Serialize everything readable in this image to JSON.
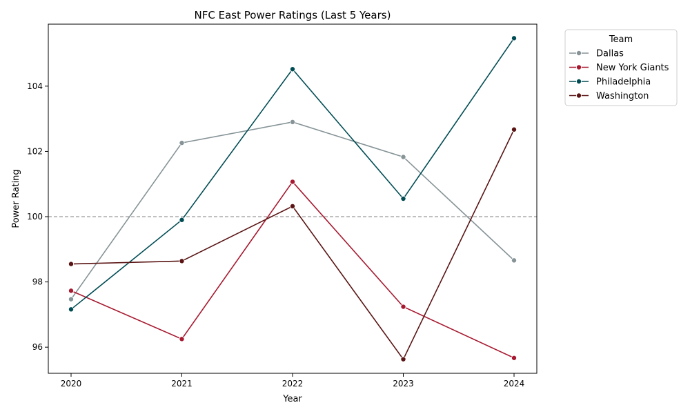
{
  "chart_data": {
    "type": "line",
    "title": "NFC East Power Ratings (Last 5 Years)",
    "xlabel": "Year",
    "ylabel": "Power Rating",
    "x": [
      "2020",
      "2021",
      "2022",
      "2023",
      "2024"
    ],
    "ylim": [
      95.2,
      105.9
    ],
    "yticks": [
      "96",
      "98",
      "100",
      "102",
      "104"
    ],
    "reference_line": {
      "value": 100,
      "style": "dashed",
      "color": "#808080"
    },
    "legend": {
      "title": "Team",
      "placement": "outside-upper-right"
    },
    "series": [
      {
        "name": "Dallas",
        "color": "#869397",
        "values": [
          97.47,
          102.26,
          102.9,
          101.83,
          98.66
        ]
      },
      {
        "name": "New York Giants",
        "color": "#a71930",
        "values": [
          97.73,
          96.25,
          101.07,
          97.24,
          95.67
        ]
      },
      {
        "name": "Philadelphia",
        "color": "#004c54",
        "values": [
          97.16,
          99.9,
          104.52,
          100.55,
          105.47
        ]
      },
      {
        "name": "Washington",
        "color": "#5a1414",
        "values": [
          98.55,
          98.64,
          100.32,
          95.63,
          102.67
        ]
      }
    ]
  }
}
